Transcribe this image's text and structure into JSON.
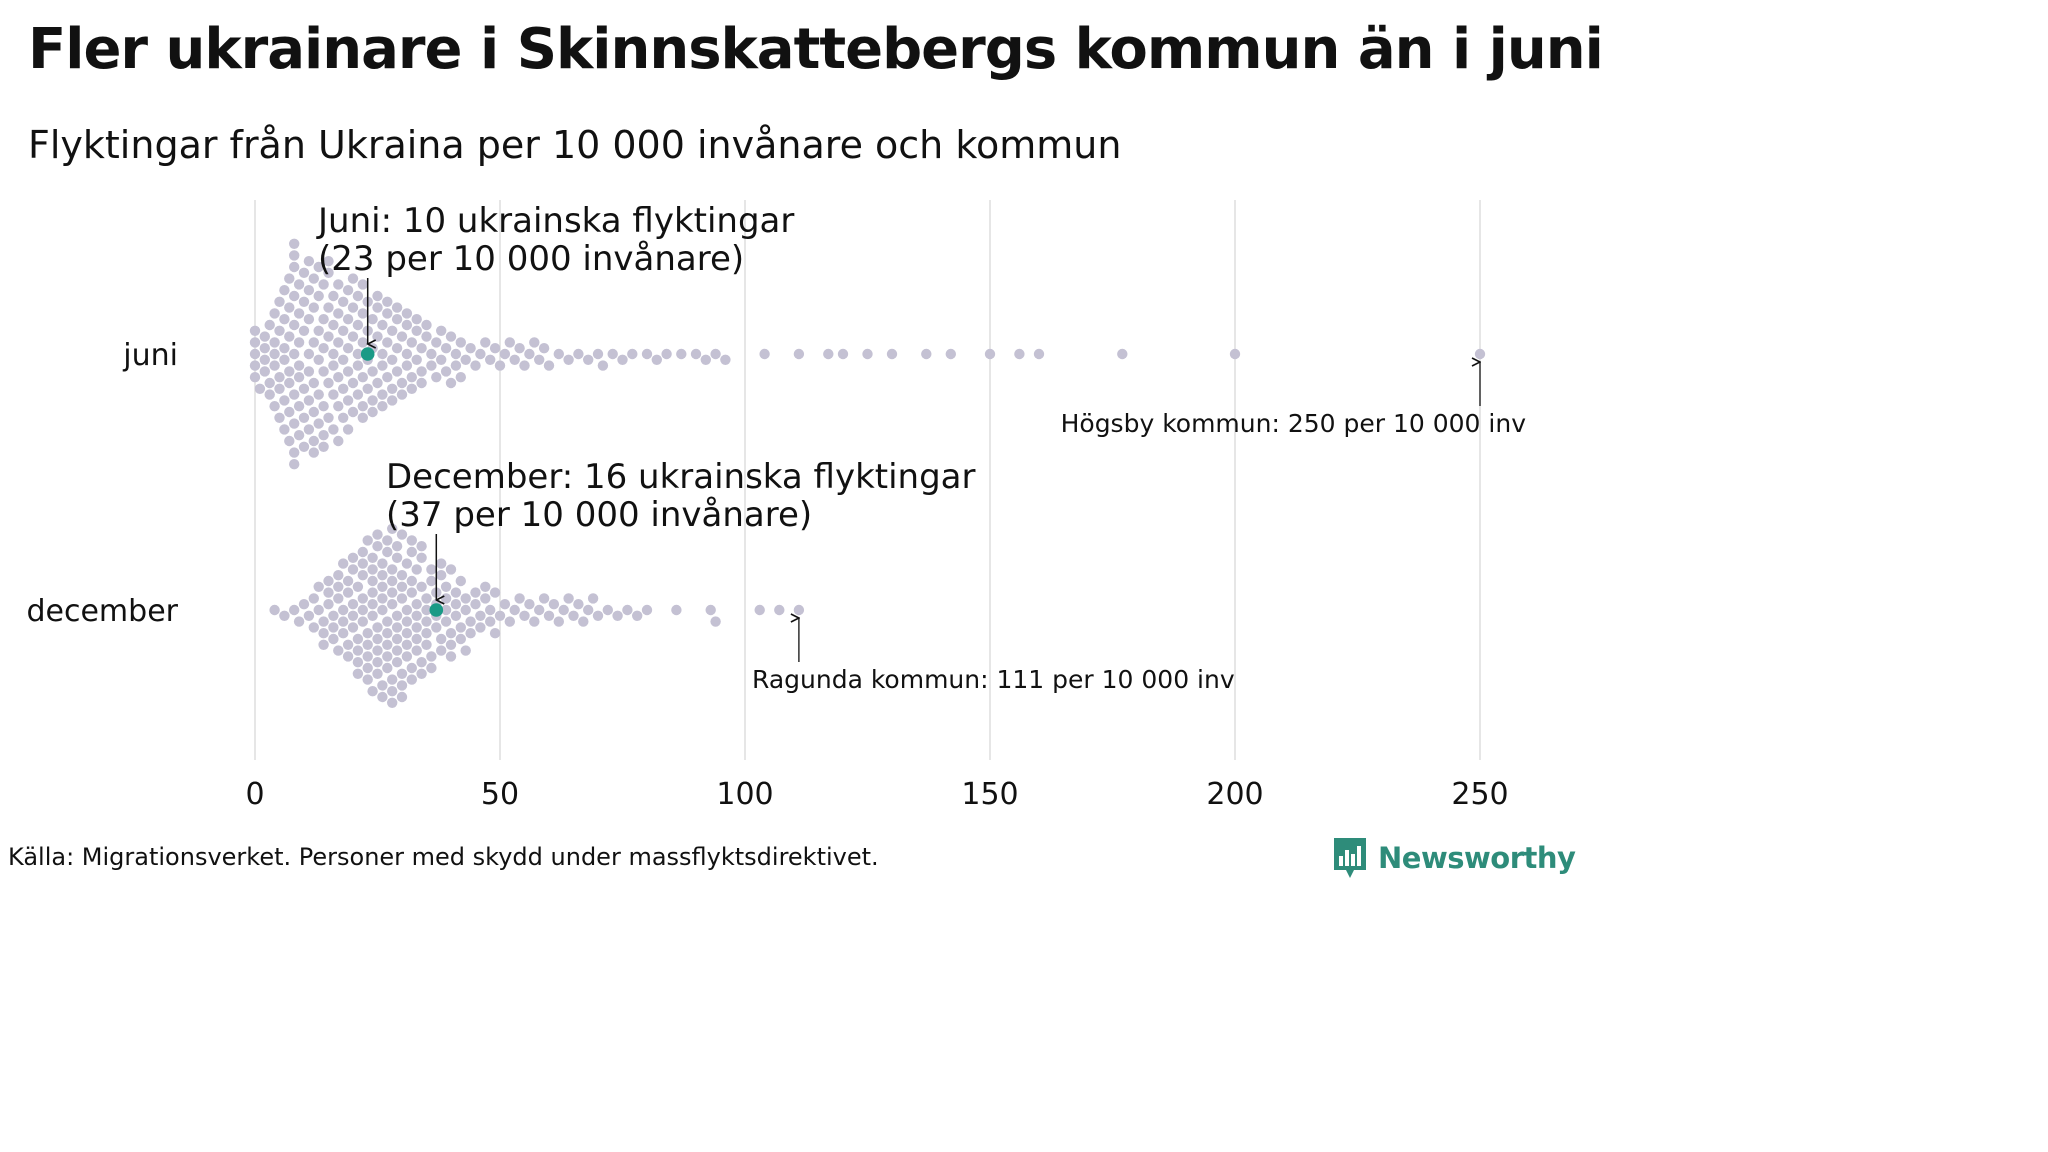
{
  "title": "Fler ukrainare i Skinnskattebergs kommun än i juni",
  "subtitle": "Flyktingar från Ukraina per 10 000 invånare och kommun",
  "source": "Källa: Migrationsverket. Personer med skydd under massflyktsdirektivet.",
  "brand": "Newsworthy",
  "colors": {
    "dots": "#c4c1d3",
    "highlight": "#1a9a86",
    "grid": "#d6d6d6",
    "brand": "#2e8c7a"
  },
  "chart_data": {
    "type": "scatter",
    "xlim": [
      0,
      250
    ],
    "xticks": [
      0,
      50,
      100,
      150,
      200,
      250
    ],
    "grid": true,
    "categories": [
      "juni",
      "december"
    ],
    "series": [
      {
        "name": "juni",
        "highlight": {
          "value": 23,
          "label_line1": "Juni: 10 ukrainska flyktingar",
          "label_line2": "(23 per 10 000 invånare)"
        },
        "max_annotation": {
          "value": 250,
          "label": "Högsby kommun: 250 per 10 000 inv"
        },
        "values": [
          0,
          0,
          0,
          0,
          0,
          1,
          2,
          2,
          2,
          2,
          3,
          3,
          3,
          4,
          4,
          4,
          4,
          4,
          5,
          5,
          5,
          5,
          5,
          6,
          6,
          6,
          6,
          6,
          6,
          7,
          7,
          7,
          7,
          7,
          7,
          7,
          8,
          8,
          8,
          8,
          8,
          8,
          8,
          8,
          8,
          8,
          9,
          9,
          9,
          9,
          9,
          9,
          9,
          10,
          10,
          10,
          10,
          10,
          10,
          11,
          11,
          11,
          11,
          11,
          11,
          11,
          12,
          12,
          12,
          12,
          12,
          12,
          12,
          13,
          13,
          13,
          13,
          13,
          13,
          14,
          14,
          14,
          14,
          14,
          14,
          14,
          15,
          15,
          15,
          15,
          15,
          15,
          16,
          16,
          16,
          16,
          16,
          16,
          17,
          17,
          17,
          17,
          17,
          17,
          18,
          18,
          18,
          18,
          18,
          19,
          19,
          19,
          19,
          19,
          19,
          20,
          20,
          20,
          20,
          20,
          21,
          21,
          21,
          21,
          21,
          22,
          22,
          22,
          22,
          22,
          22,
          23,
          23,
          23,
          23,
          24,
          24,
          24,
          24,
          24,
          25,
          25,
          25,
          25,
          26,
          26,
          26,
          26,
          26,
          27,
          27,
          27,
          27,
          28,
          28,
          28,
          28,
          29,
          29,
          29,
          29,
          30,
          30,
          30,
          31,
          31,
          31,
          31,
          32,
          32,
          32,
          33,
          33,
          33,
          34,
          34,
          34,
          35,
          35,
          36,
          36,
          37,
          37,
          38,
          38,
          39,
          39,
          40,
          40,
          41,
          41,
          42,
          42,
          43,
          44,
          45,
          46,
          47,
          48,
          49,
          50,
          51,
          52,
          53,
          54,
          55,
          56,
          57,
          58,
          59,
          60,
          62,
          64,
          66,
          68,
          70,
          71,
          73,
          75,
          77,
          80,
          82,
          84,
          87,
          90,
          92,
          94,
          96,
          104,
          111,
          117,
          120,
          125,
          130,
          137,
          142,
          150,
          156,
          160,
          177,
          200,
          250
        ]
      },
      {
        "name": "december",
        "highlight": {
          "value": 37,
          "label_line1": "December: 16 ukrainska flyktingar",
          "label_line2": "(37 per 10 000 invånare)"
        },
        "max_annotation": {
          "value": 111,
          "label": "Ragunda kommun: 111 per 10 000 inv"
        },
        "values": [
          4,
          6,
          8,
          9,
          10,
          11,
          12,
          12,
          13,
          13,
          14,
          14,
          14,
          15,
          15,
          15,
          16,
          16,
          16,
          17,
          17,
          17,
          17,
          18,
          18,
          18,
          18,
          19,
          19,
          19,
          19,
          20,
          20,
          20,
          20,
          20,
          21,
          21,
          21,
          21,
          21,
          22,
          22,
          22,
          22,
          22,
          22,
          23,
          23,
          23,
          23,
          23,
          23,
          24,
          24,
          24,
          24,
          24,
          24,
          24,
          25,
          25,
          25,
          25,
          25,
          25,
          25,
          26,
          26,
          26,
          26,
          26,
          26,
          26,
          27,
          27,
          27,
          27,
          27,
          27,
          27,
          28,
          28,
          28,
          28,
          28,
          28,
          28,
          28,
          29,
          29,
          29,
          29,
          29,
          29,
          29,
          30,
          30,
          30,
          30,
          30,
          30,
          30,
          31,
          31,
          31,
          31,
          31,
          31,
          32,
          32,
          32,
          32,
          32,
          32,
          33,
          33,
          33,
          33,
          33,
          33,
          34,
          34,
          34,
          34,
          34,
          35,
          35,
          35,
          35,
          35,
          36,
          36,
          36,
          36,
          37,
          37,
          37,
          37,
          38,
          38,
          38,
          38,
          39,
          39,
          39,
          39,
          40,
          40,
          40,
          40,
          41,
          41,
          41,
          42,
          42,
          42,
          43,
          43,
          43,
          44,
          44,
          45,
          45,
          46,
          46,
          47,
          47,
          48,
          48,
          49,
          49,
          50,
          51,
          52,
          53,
          54,
          55,
          56,
          57,
          58,
          59,
          60,
          61,
          62,
          63,
          64,
          65,
          66,
          67,
          68,
          69,
          70,
          72,
          74,
          76,
          78,
          80,
          86,
          93,
          94,
          103,
          107,
          111
        ]
      }
    ]
  }
}
